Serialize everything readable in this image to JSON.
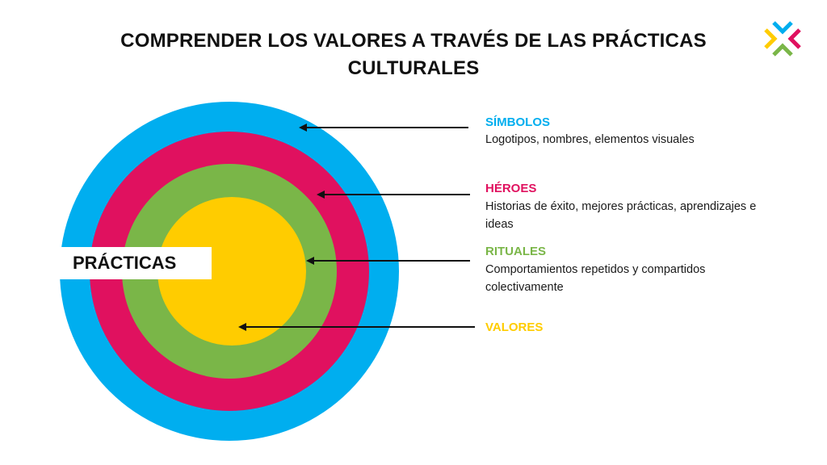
{
  "title": "COMPRENDER LOS VALORES A TRAVÉS DE LAS PRÁCTICAS CULTURALES",
  "logo": {
    "icon": "x-brand-logo-icon",
    "colors": [
      "#00AEEF",
      "#E0115F",
      "#7AB648",
      "#FFCC00"
    ]
  },
  "center_label": "PRÁCTICAS",
  "layers": [
    {
      "heading": "SÍMBOLOS",
      "description": " Logotipos, nombres, elementos visuales",
      "color": "#00AEEF"
    },
    {
      "heading": "HÉROES",
      "description": "Historias de éxito, mejores prácticas, aprendizajes e ideas",
      "color": "#E0115F"
    },
    {
      "heading": "RITUALES",
      "description": " Comportamientos repetidos y compartidos colectivamente",
      "color": "#7AB648"
    },
    {
      "heading": "VALORES",
      "description": "",
      "color": "#FFCC00"
    }
  ]
}
